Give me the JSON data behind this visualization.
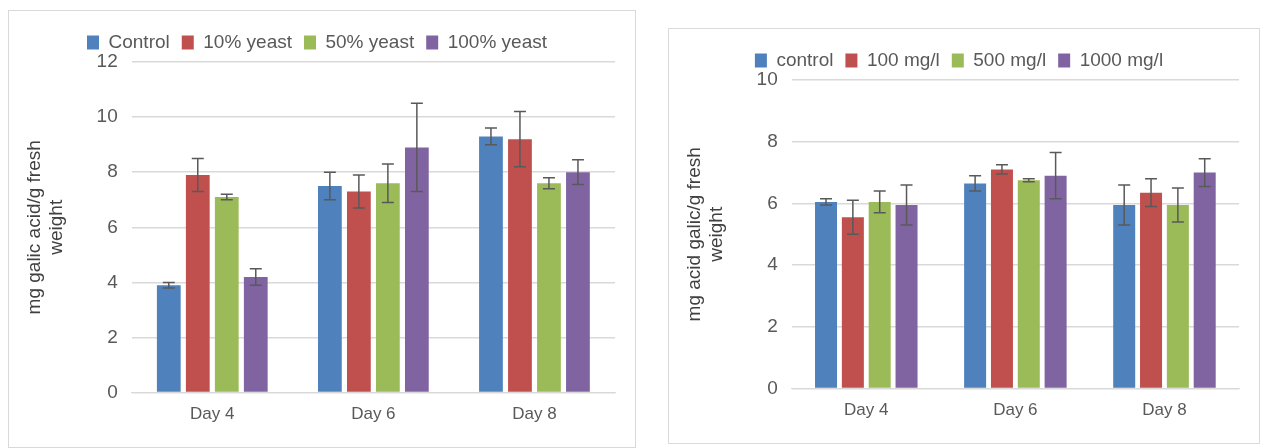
{
  "chart_data": [
    {
      "type": "bar",
      "ylabel": "mg galic acid/g fresh weight",
      "categories": [
        "Day 4",
        "Day 6",
        "Day 8"
      ],
      "ylim": [
        0,
        12
      ],
      "yticks": [
        0,
        2,
        4,
        6,
        8,
        10,
        12
      ],
      "grid": "y",
      "legend": "top",
      "series": [
        {
          "name": "Control",
          "color": "#4f81bd",
          "values": [
            3.9,
            7.5,
            9.3
          ],
          "errors": [
            0.1,
            0.5,
            0.3
          ]
        },
        {
          "name": "10% yeast",
          "color": "#c0504d",
          "values": [
            7.9,
            7.3,
            9.2
          ],
          "errors": [
            0.6,
            0.6,
            1.0
          ]
        },
        {
          "name": "50% yeast",
          "color": "#9bbb59",
          "values": [
            7.1,
            7.6,
            7.6
          ],
          "errors": [
            0.1,
            0.7,
            0.2
          ]
        },
        {
          "name": "100% yeast",
          "color": "#8064a2",
          "values": [
            4.2,
            8.9,
            8.0
          ],
          "errors": [
            0.3,
            1.6,
            0.45
          ]
        }
      ]
    },
    {
      "type": "bar",
      "ylabel": "mg acid galic/g fresh weight",
      "categories": [
        "Day 4",
        "Day 6",
        "Day 8"
      ],
      "ylim": [
        0,
        10
      ],
      "yticks": [
        0,
        2,
        4,
        6,
        8,
        10
      ],
      "grid": "y",
      "legend": "top",
      "series": [
        {
          "name": "control",
          "color": "#4f81bd",
          "values": [
            6.05,
            6.65,
            5.95
          ],
          "errors": [
            0.1,
            0.25,
            0.65
          ]
        },
        {
          "name": "100 mg/l",
          "color": "#c0504d",
          "values": [
            5.55,
            7.1,
            6.35
          ],
          "errors": [
            0.55,
            0.15,
            0.45
          ]
        },
        {
          "name": "500 mg/l",
          "color": "#9bbb59",
          "values": [
            6.05,
            6.75,
            5.95
          ],
          "errors": [
            0.35,
            0.05,
            0.55
          ]
        },
        {
          "name": "1000 mg/l",
          "color": "#8064a2",
          "values": [
            5.95,
            6.9,
            7.0
          ],
          "errors": [
            0.65,
            0.75,
            0.45
          ]
        }
      ]
    }
  ]
}
